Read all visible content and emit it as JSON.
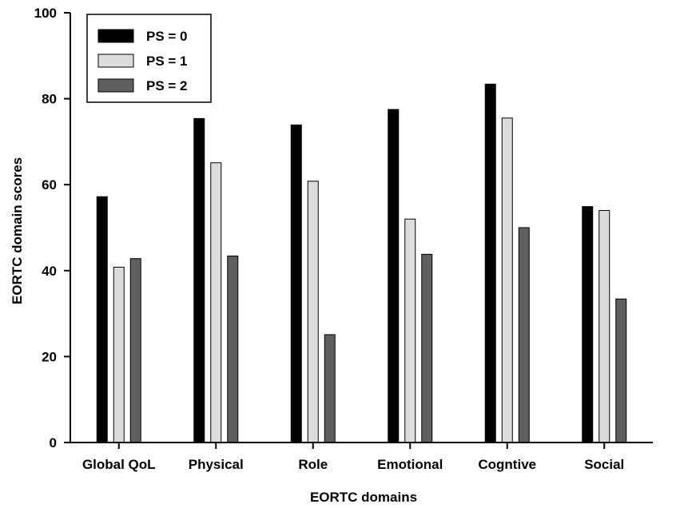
{
  "chart_data": {
    "type": "bar",
    "title": "",
    "xlabel": "EORTC domains",
    "ylabel": "EORTC domain scores",
    "ylim": [
      0,
      100
    ],
    "yticks": [
      0,
      20,
      40,
      60,
      80,
      100
    ],
    "categories": [
      "Global QoL",
      "Physical",
      "Role",
      "Emotional",
      "Cogntive",
      "Social"
    ],
    "series": [
      {
        "name": "PS = 0",
        "color": "#000000",
        "values": [
          57.2,
          75.4,
          73.9,
          77.5,
          83.4,
          54.9
        ]
      },
      {
        "name": "PS = 1",
        "color": "#dcdcdc",
        "values": [
          40.8,
          65.1,
          60.8,
          52.0,
          75.5,
          54.0
        ]
      },
      {
        "name": "PS = 2",
        "color": "#5f5f5f",
        "values": [
          42.8,
          43.4,
          25.1,
          43.8,
          50.0,
          33.4
        ]
      }
    ],
    "grid": false,
    "legend_position": "top-left"
  }
}
